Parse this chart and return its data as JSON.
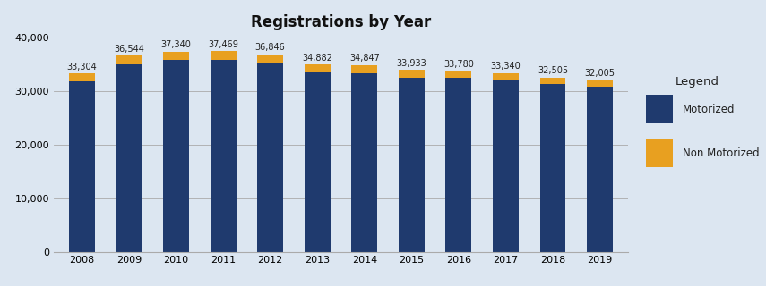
{
  "title": "Registrations by Year",
  "years": [
    2008,
    2009,
    2010,
    2011,
    2012,
    2013,
    2014,
    2015,
    2016,
    2017,
    2018,
    2019
  ],
  "totals": [
    33304,
    36544,
    37340,
    37469,
    36846,
    34882,
    34847,
    33933,
    33780,
    33340,
    32505,
    32005
  ],
  "motorized": [
    31800,
    34900,
    35700,
    35850,
    35200,
    33400,
    33300,
    32500,
    32400,
    32000,
    31200,
    30800
  ],
  "non_motorized": [
    1504,
    1644,
    1640,
    1619,
    1646,
    1482,
    1547,
    1433,
    1380,
    1340,
    1305,
    1205
  ],
  "motorized_color": "#1f3a6e",
  "non_motorized_color": "#e8a020",
  "bar_width": 0.55,
  "ylim": [
    0,
    40000
  ],
  "yticks": [
    0,
    10000,
    20000,
    30000,
    40000
  ],
  "fig_bg_color": "#dce6f1",
  "plot_bg_color": "#dce6f1",
  "legend_bg_color": "#f2f2f2",
  "grid_color": "#aaaaaa",
  "title_fontsize": 12,
  "label_fontsize": 7,
  "tick_fontsize": 8,
  "legend_title": "Legend",
  "legend_labels": [
    "Motorized",
    "Non Motorized"
  ]
}
